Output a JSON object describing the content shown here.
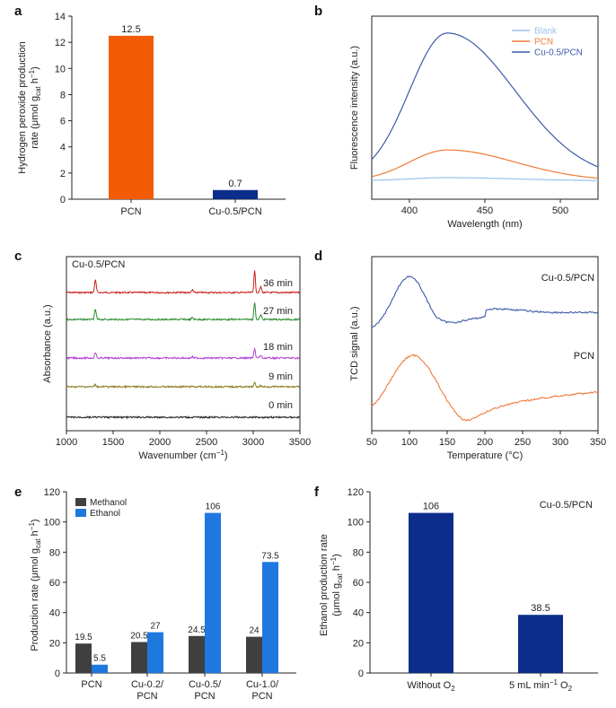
{
  "colors": {
    "pcn_orange": "#f25c05",
    "pcn_line": "#f07a3a",
    "cu_navy": "#0c2d8a",
    "cu_line": "#3b5aa6",
    "blank": "#9cc2ea",
    "methanol": "#404040",
    "ethanol": "#1f78e0",
    "red": "#c8201e",
    "green": "#2b8a2e",
    "purple": "#b040d0",
    "olive": "#8a7a1e",
    "black": "#222222"
  },
  "chart_data": [
    {
      "panel": "a",
      "type": "bar",
      "categories": [
        "PCN",
        "Cu-0.5/PCN"
      ],
      "values": [
        12.5,
        0.7
      ],
      "value_labels": [
        "12.5",
        "0.7"
      ],
      "ylabel_line1": "Hydrogen peroxide production",
      "ylabel_line2": "rate (μmol g",
      "ylabel_sub": "cat",
      "ylabel_tail": " h",
      "ylabel_sup": "−1",
      "ylabel_close": ")",
      "yticks": [
        0,
        2,
        4,
        6,
        8,
        10,
        12,
        14
      ],
      "ylim": [
        0,
        14
      ]
    },
    {
      "panel": "b",
      "type": "line",
      "xlabel": "Wavelength (nm)",
      "ylabel": "Fluorescence intensity (a.u.)",
      "xticks": [
        400,
        450,
        500
      ],
      "xlim": [
        375,
        525
      ],
      "legend": [
        "Blank",
        "PCN",
        "Cu-0.5/PCN"
      ],
      "series": [
        {
          "name": "Blank",
          "peak": 425,
          "amplitude": 0.02,
          "baseline": 0.05
        },
        {
          "name": "PCN",
          "peak": 425,
          "amplitude": 0.2,
          "baseline": 0.05
        },
        {
          "name": "Cu-0.5/PCN",
          "peak": 425,
          "amplitude": 0.95,
          "baseline": 0.06
        }
      ]
    },
    {
      "panel": "c",
      "type": "line",
      "title": "Cu-0.5/PCN",
      "xlabel": "Wavenumber (cm",
      "xlabel_sup": "−1",
      "xlabel_close": ")",
      "ylabel": "Absorbance (a.u.)",
      "xticks": [
        1000,
        1500,
        2000,
        2500,
        3000,
        3500
      ],
      "xlim": [
        1000,
        3500
      ],
      "series": [
        {
          "name": "36 min",
          "offset": 4,
          "peak_scale": 1.0
        },
        {
          "name": "27 min",
          "offset": 3,
          "peak_scale": 0.8
        },
        {
          "name": "18 min",
          "offset": 2,
          "peak_scale": 0.45
        },
        {
          "name": "9 min",
          "offset": 1,
          "peak_scale": 0.18
        },
        {
          "name": "0 min",
          "offset": 0,
          "peak_scale": 0.0
        }
      ]
    },
    {
      "panel": "d",
      "type": "line",
      "xlabel": "Temperature (°C)",
      "ylabel": "TCD signal (a.u.)",
      "xticks": [
        50,
        100,
        150,
        200,
        250,
        300,
        350
      ],
      "xlim": [
        50,
        350
      ],
      "series": [
        {
          "name": "Cu-0.5/PCN"
        },
        {
          "name": "PCN"
        }
      ]
    },
    {
      "panel": "e",
      "type": "bar",
      "categories": [
        "PCN",
        "Cu-0.2/\nPCN",
        "Cu-0.5/\nPCN",
        "Cu-1.0/\nPCN"
      ],
      "series": [
        {
          "name": "Methanol",
          "values": [
            19.5,
            20.5,
            24.5,
            24
          ],
          "labels": [
            "19.5",
            "20.5",
            "24.5",
            "24"
          ]
        },
        {
          "name": "Ethanol",
          "values": [
            5.5,
            27,
            106,
            73.5
          ],
          "labels": [
            "5.5",
            "27",
            "106",
            "73.5"
          ]
        }
      ],
      "ylabel": "Production rate (μmol g",
      "ylabel_sub": "cat",
      "ylabel_tail": " h",
      "ylabel_sup": "−1",
      "ylabel_close": ")",
      "yticks": [
        0,
        20,
        40,
        60,
        80,
        100,
        120
      ],
      "ylim": [
        0,
        120
      ]
    },
    {
      "panel": "f",
      "type": "bar",
      "title": "Cu-0.5/PCN",
      "categories": [
        "Without O",
        "5 mL min"
      ],
      "category_sup": [
        "",
        "−1"
      ],
      "category_tail": [
        "",
        " O"
      ],
      "category_sub": [
        "2",
        "2"
      ],
      "values": [
        106,
        38.5
      ],
      "value_labels": [
        "106",
        "38.5"
      ],
      "ylabel_line1": "Ethanol production rate",
      "ylabel_line2": "(μmol g",
      "ylabel_sub": "cat",
      "ylabel_tail": " h",
      "ylabel_sup": "−1",
      "ylabel_close": ")",
      "yticks": [
        0,
        20,
        40,
        60,
        80,
        100,
        120
      ],
      "ylim": [
        0,
        120
      ]
    }
  ]
}
